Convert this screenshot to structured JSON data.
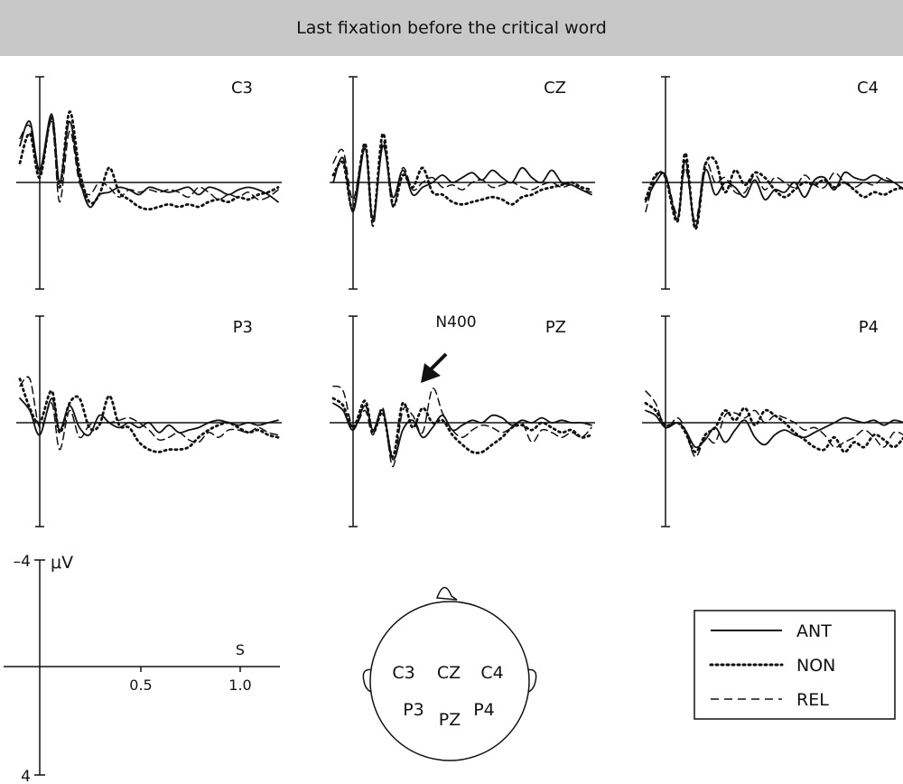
{
  "title": "Last fixation before the critical word",
  "chart_data": {
    "type": "line",
    "title": "Last fixation before the critical word",
    "x_unit": "s",
    "y_unit": "μV",
    "y_negative_up": true,
    "xlim": [
      -0.1,
      1.2
    ],
    "ylim": [
      4,
      -4
    ],
    "x_ticks": [
      "0.5",
      "1.0"
    ],
    "y_ticks": [
      "–4",
      "4"
    ],
    "x": [
      -0.1,
      -0.05,
      0.0,
      0.06,
      0.1,
      0.15,
      0.2,
      0.25,
      0.3,
      0.35,
      0.4,
      0.45,
      0.5,
      0.55,
      0.6,
      0.65,
      0.7,
      0.75,
      0.8,
      0.85,
      0.9,
      0.95,
      1.0,
      1.05,
      1.1,
      1.15,
      1.2
    ],
    "series_styles": [
      {
        "name": "ANT",
        "dash": "solid"
      },
      {
        "name": "NON",
        "dash": "dotted"
      },
      {
        "name": "REL",
        "dash": "dashed"
      }
    ],
    "panels": [
      {
        "label": "C3",
        "series": [
          {
            "name": "ANT",
            "values": [
              -1.5,
              -2.5,
              -0.5,
              -2.8,
              0.0,
              -2.5,
              -0.2,
              1.0,
              0.5,
              0.4,
              0.2,
              0.3,
              0.5,
              0.2,
              0.3,
              0.4,
              0.3,
              0.2,
              0.5,
              0.2,
              0.3,
              0.5,
              0.3,
              0.2,
              0.3,
              0.5,
              0.8
            ]
          },
          {
            "name": "NON",
            "values": [
              -0.8,
              -2.0,
              -0.2,
              -2.7,
              0.2,
              -2.9,
              -0.5,
              0.8,
              0.5,
              -0.6,
              0.4,
              0.7,
              1.0,
              1.1,
              1.0,
              0.9,
              1.0,
              0.9,
              1.0,
              0.8,
              0.7,
              0.8,
              0.6,
              0.7,
              0.5,
              0.4,
              0.2
            ]
          },
          {
            "name": "REL",
            "values": [
              -1.8,
              -2.3,
              -0.3,
              -2.5,
              0.8,
              -2.1,
              0.0,
              0.5,
              0.0,
              0.2,
              0.6,
              0.3,
              0.4,
              0.3,
              0.4,
              0.3,
              0.4,
              0.6,
              0.2,
              0.4,
              0.7,
              0.5,
              0.6,
              0.4,
              0.7,
              0.6,
              0.3
            ]
          }
        ]
      },
      {
        "label": "CZ",
        "series": [
          {
            "name": "ANT",
            "values": [
              0.0,
              -1.0,
              1.2,
              -1.4,
              1.5,
              -1.5,
              0.6,
              -0.5,
              0.5,
              0.2,
              0.0,
              -0.3,
              0.0,
              -0.2,
              -0.4,
              -0.1,
              -0.5,
              -0.2,
              0.0,
              -0.6,
              -0.2,
              0.0,
              -0.5,
              0.0,
              0.1,
              0.3,
              0.5
            ]
          },
          {
            "name": "NON",
            "values": [
              -0.3,
              -0.8,
              1.1,
              -1.6,
              1.6,
              -2.0,
              0.9,
              -0.3,
              0.2,
              -0.6,
              0.4,
              0.5,
              0.8,
              0.9,
              0.8,
              0.7,
              0.6,
              0.7,
              0.9,
              0.6,
              0.5,
              0.3,
              0.2,
              0.1,
              0.0,
              0.2,
              0.3
            ]
          },
          {
            "name": "REL",
            "values": [
              -0.8,
              -1.3,
              0.7,
              -1.5,
              1.8,
              -1.7,
              1.0,
              -0.6,
              0.3,
              0.0,
              -0.2,
              0.2,
              0.1,
              0.3,
              0.0,
              -0.1,
              0.2,
              0.1,
              0.0,
              0.2,
              0.3,
              0.1,
              0.0,
              0.2,
              0.1,
              0.3,
              0.4
            ]
          }
        ]
      },
      {
        "label": "C4",
        "series": [
          {
            "name": "ANT",
            "values": [
              0.8,
              0.0,
              -0.3,
              1.5,
              -0.9,
              1.8,
              -0.5,
              0.5,
              0.0,
              0.2,
              0.6,
              -0.1,
              0.7,
              0.3,
              0.4,
              0.0,
              0.6,
              -0.1,
              -0.2,
              0.3,
              -0.4,
              -0.2,
              -0.1,
              -0.3,
              -0.1,
              0.0,
              0.3
            ]
          },
          {
            "name": "NON",
            "values": [
              0.7,
              -0.3,
              -0.2,
              1.6,
              -1.2,
              1.9,
              -0.7,
              -0.9,
              0.4,
              -0.5,
              0.1,
              -0.4,
              -0.2,
              0.3,
              0.6,
              0.3,
              0.0,
              0.1,
              -0.1,
              0.2,
              0.0,
              0.3,
              0.6,
              0.4,
              0.5,
              0.3,
              0.2
            ]
          },
          {
            "name": "REL",
            "values": [
              1.2,
              -0.2,
              -0.3,
              1.3,
              -0.6,
              1.6,
              -0.8,
              0.0,
              -0.2,
              0.4,
              0.4,
              -0.3,
              0.3,
              -0.2,
              0.0,
              0.2,
              -0.3,
              0.1,
              0.2,
              -0.4,
              0.0,
              0.2,
              0.0,
              0.1,
              -0.2,
              0.0,
              0.3
            ]
          }
        ]
      },
      {
        "label": "P3",
        "series": [
          {
            "name": "ANT",
            "values": [
              -1.0,
              -0.5,
              0.5,
              -1.0,
              0.3,
              -0.7,
              0.2,
              0.5,
              -0.3,
              0.0,
              0.2,
              0.0,
              0.2,
              0.0,
              0.4,
              0.1,
              0.4,
              0.3,
              0.2,
              0.0,
              -0.1,
              0.0,
              0.1,
              0.0,
              0.1,
              0.0,
              -0.1
            ]
          },
          {
            "name": "NON",
            "values": [
              -1.8,
              -0.6,
              0.0,
              -1.3,
              0.4,
              -0.8,
              -1.0,
              0.2,
              0.1,
              -1.1,
              0.1,
              0.2,
              0.8,
              1.1,
              1.2,
              1.1,
              1.1,
              1.0,
              0.6,
              0.3,
              0.1,
              0.0,
              0.2,
              0.4,
              0.3,
              0.5,
              0.6
            ]
          },
          {
            "name": "REL",
            "values": [
              -1.5,
              -1.8,
              0.2,
              -0.8,
              1.1,
              -0.5,
              0.6,
              0.1,
              0.0,
              0.0,
              -0.1,
              -0.2,
              0.0,
              0.3,
              0.7,
              0.6,
              0.4,
              0.7,
              0.8,
              0.4,
              0.6,
              0.3,
              0.3,
              0.4,
              0.2,
              0.4,
              0.5
            ]
          }
        ]
      },
      {
        "label": "PZ",
        "series": [
          {
            "name": "ANT",
            "values": [
              -0.8,
              -0.5,
              0.3,
              -0.7,
              0.3,
              -0.5,
              1.5,
              0.3,
              -0.1,
              0.6,
              0.2,
              -0.3,
              0.3,
              0.1,
              -0.1,
              0.0,
              -0.3,
              -0.2,
              0.1,
              -0.1,
              0.0,
              -0.2,
              0.0,
              -0.1,
              0.0,
              0.0,
              0.1
            ]
          },
          {
            "name": "NON",
            "values": [
              -1.0,
              -0.7,
              0.2,
              -0.9,
              0.4,
              -0.4,
              1.4,
              -0.8,
              0.2,
              -0.6,
              0.0,
              -0.1,
              0.5,
              0.9,
              1.2,
              1.2,
              0.9,
              0.6,
              0.2,
              0.1,
              0.3,
              0.0,
              0.2,
              0.4,
              0.3,
              0.6,
              0.5
            ]
          },
          {
            "name": "REL",
            "values": [
              -1.5,
              -1.3,
              0.2,
              -0.5,
              0.5,
              -0.6,
              1.8,
              -0.5,
              -0.3,
              0.4,
              -1.4,
              -0.4,
              0.3,
              0.6,
              0.3,
              0.1,
              0.2,
              0.4,
              0.2,
              0.0,
              0.8,
              0.3,
              0.4,
              0.6,
              0.4,
              0.6,
              0.2
            ]
          }
        ]
      },
      {
        "label": "P4",
        "series": [
          {
            "name": "ANT",
            "values": [
              -0.5,
              -0.3,
              0.2,
              0.0,
              0.3,
              1.0,
              0.7,
              0.2,
              0.8,
              0.3,
              -0.1,
              0.6,
              0.9,
              0.5,
              0.3,
              0.5,
              0.6,
              0.4,
              0.2,
              0.0,
              -0.2,
              -0.1,
              0.0,
              -0.1,
              0.1,
              -0.1,
              0.0
            ]
          },
          {
            "name": "NON",
            "values": [
              -0.8,
              -0.5,
              0.1,
              0.0,
              0.4,
              1.2,
              0.5,
              0.2,
              -0.5,
              -0.1,
              -0.6,
              0.1,
              -0.5,
              -0.3,
              0.0,
              0.4,
              0.7,
              1.0,
              1.1,
              0.6,
              1.2,
              0.8,
              1.0,
              0.5,
              0.7,
              1.0,
              0.6
            ]
          },
          {
            "name": "REL",
            "values": [
              -1.3,
              -0.8,
              0.2,
              -0.2,
              0.3,
              1.4,
              0.6,
              0.8,
              -0.3,
              -0.4,
              -0.2,
              -0.5,
              0.0,
              -0.3,
              -0.2,
              0.0,
              0.3,
              0.2,
              0.5,
              1.0,
              0.8,
              0.6,
              0.3,
              0.6,
              1.0,
              0.4,
              0.5
            ]
          }
        ]
      }
    ],
    "annotation": "N400",
    "annotation_panel": "PZ",
    "legend": [
      "ANT",
      "NON",
      "REL"
    ],
    "legend_position": "bottom-right"
  },
  "scale_panel": {
    "ylabel": "μV",
    "y_top": "–4",
    "y_bottom": "4",
    "x_ticks": [
      "0.5",
      "1.0"
    ],
    "x_label": "S"
  },
  "head_map": {
    "electrodes": [
      "C3",
      "CZ",
      "C4",
      "P3",
      "PZ",
      "P4"
    ]
  }
}
